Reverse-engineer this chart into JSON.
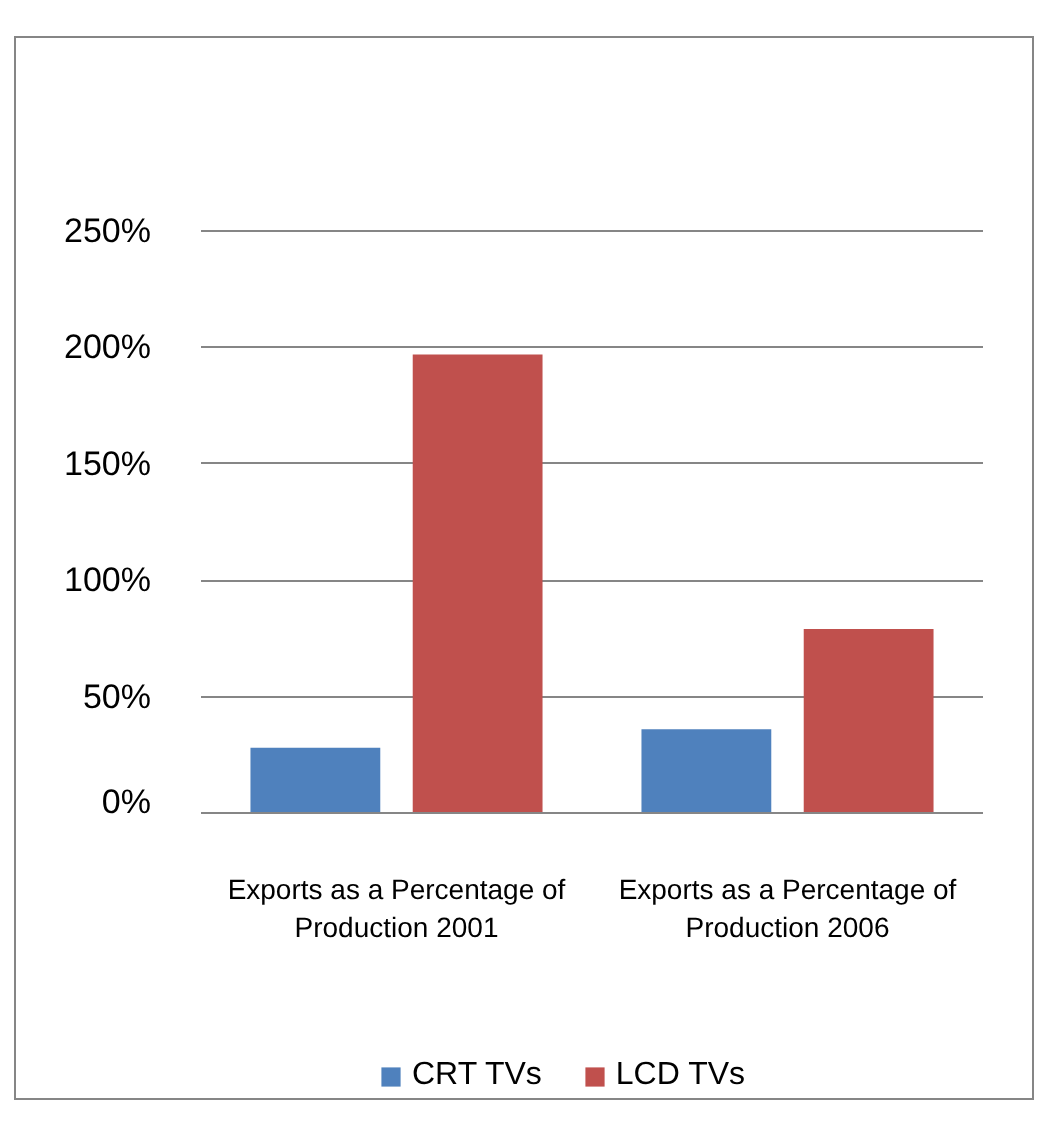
{
  "chart_data": {
    "type": "bar",
    "categories": [
      "Exports as a Percentage of Production 2001",
      "Exports as a Percentage of Production 2006"
    ],
    "series": [
      {
        "name": "CRT TVs",
        "color": "#4f81bd",
        "values": [
          28,
          36
        ]
      },
      {
        "name": "LCD TVs",
        "color": "#c0504d",
        "values": [
          197,
          79
        ]
      }
    ],
    "ylim": [
      0,
      250
    ],
    "yticks": [
      {
        "value": 0,
        "label": "0%"
      },
      {
        "value": 50,
        "label": "50%"
      },
      {
        "value": 100,
        "label": "100%"
      },
      {
        "value": 150,
        "label": "150%"
      },
      {
        "value": 200,
        "label": "200%"
      },
      {
        "value": 250,
        "label": "250%"
      }
    ],
    "grid": "y",
    "legend": "bottom"
  }
}
